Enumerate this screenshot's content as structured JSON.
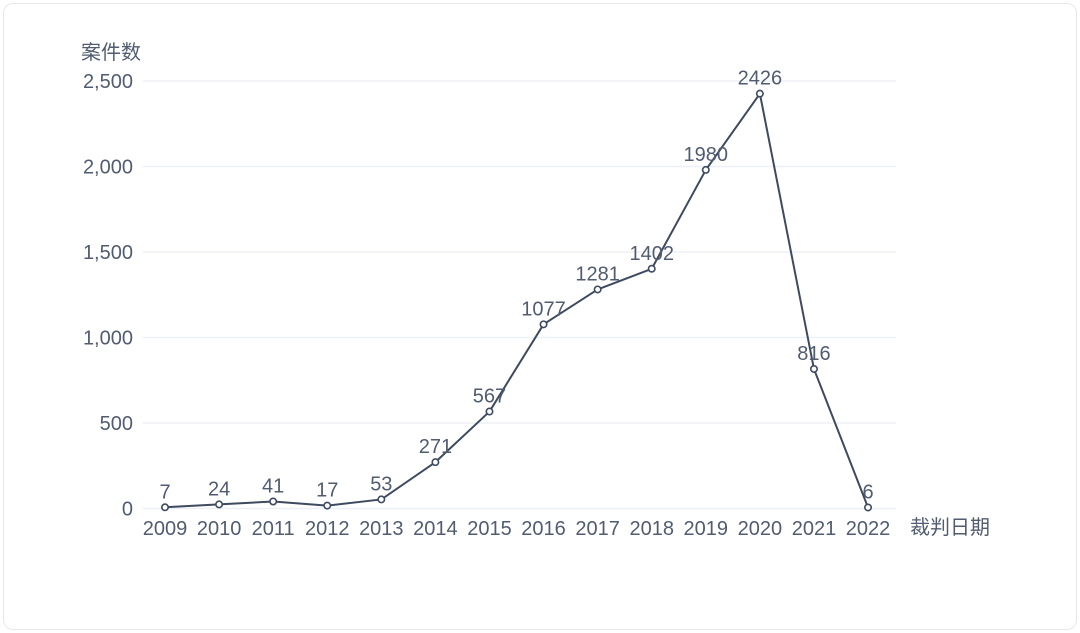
{
  "chart_data": {
    "type": "line",
    "title": "",
    "categories": [
      "2009",
      "2010",
      "2011",
      "2012",
      "2013",
      "2014",
      "2015",
      "2016",
      "2017",
      "2018",
      "2019",
      "2020",
      "2021",
      "2022"
    ],
    "values": [
      7,
      24,
      41,
      17,
      53,
      271,
      567,
      1077,
      1281,
      1402,
      1980,
      2426,
      816,
      6
    ],
    "data_labels": [
      "7",
      "24",
      "41",
      "17",
      "53",
      "271",
      "567",
      "1077",
      "1281",
      "1402",
      "1980",
      "2426",
      "816",
      "6"
    ],
    "ylabel": "案件数",
    "xlabel": "裁判日期",
    "ylim": [
      0,
      2500
    ],
    "yticks": [
      {
        "value": 0,
        "label": "0"
      },
      {
        "value": 500,
        "label": "500"
      },
      {
        "value": 1000,
        "label": "1,000"
      },
      {
        "value": 1500,
        "label": "1,500"
      },
      {
        "value": 2000,
        "label": "2,000"
      },
      {
        "value": 2500,
        "label": "2,500"
      }
    ],
    "grid": true,
    "legend_position": "none",
    "colors": {
      "line": "#3e4a5f",
      "marker_fill": "#ffffff",
      "text": "#515c70",
      "grid": "#edf0f6",
      "card_border": "#e8e8ec",
      "background": "#ffffff"
    }
  }
}
